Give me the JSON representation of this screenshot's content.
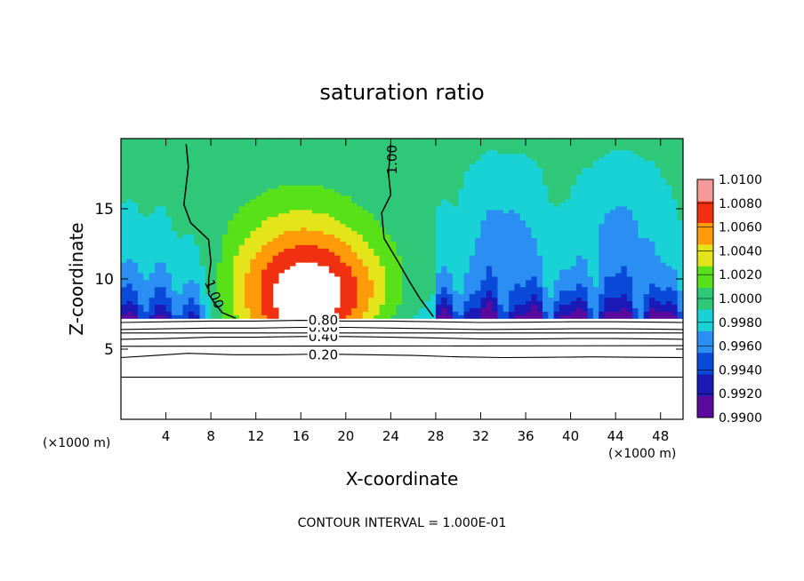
{
  "chart_data": {
    "type": "heatmap",
    "title": "saturation ratio",
    "xlabel": "X-coordinate",
    "ylabel": "Z-coordinate",
    "x_unit_left": "(×1000 m)",
    "x_unit_right": "(×1000 m)",
    "footer": "CONTOUR INTERVAL = 1.000E-01",
    "xlim": [
      0,
      50
    ],
    "ylim": [
      0,
      20
    ],
    "x_ticks": [
      4,
      8,
      12,
      16,
      20,
      24,
      28,
      32,
      36,
      40,
      44,
      48
    ],
    "y_ticks": [
      5,
      10,
      15
    ],
    "surface_height": 7.2,
    "colorbar": {
      "levels": [
        0.99,
        0.992,
        0.994,
        0.996,
        0.998,
        1.0,
        1.002,
        1.004,
        1.006,
        1.008,
        1.01
      ],
      "tick_labels": [
        "0.9900",
        "0.9920",
        "0.9940",
        "0.9960",
        "0.9980",
        "1.0000",
        "1.0020",
        "1.0040",
        "1.0060",
        "1.0080",
        "1.0100"
      ],
      "colors": [
        "#5a0a9c",
        "#1c1ab6",
        "#0a4ad8",
        "#2a8ef2",
        "#18d2d6",
        "#2ec878",
        "#58e018",
        "#e4e41a",
        "#ff9a08",
        "#f03010",
        "#f49a9a"
      ]
    },
    "contours": [
      {
        "label": "1.00",
        "side": "left",
        "x": [
          5.8,
          6.0,
          5.6,
          6.2,
          7.8,
          8.0,
          7.8,
          7.8,
          8.4,
          9.0,
          10.2
        ],
        "y": [
          19.6,
          18.0,
          15.3,
          14.0,
          12.8,
          11.2,
          10.0,
          8.9,
          8.2,
          7.6,
          7.2
        ]
      },
      {
        "label": "1.00",
        "side": "right",
        "x": [
          24.0,
          23.8,
          24.0,
          23.2,
          23.4,
          24.6,
          25.6,
          26.6,
          27.8
        ],
        "y": [
          19.6,
          17.5,
          16.0,
          14.7,
          12.9,
          11.3,
          9.9,
          8.6,
          7.3
        ]
      },
      {
        "label": "0.20",
        "x": [
          0,
          2,
          6,
          10,
          14,
          18,
          22,
          26,
          30,
          34,
          38,
          42,
          46,
          50
        ],
        "y": [
          4.4,
          4.5,
          4.7,
          4.6,
          4.6,
          4.65,
          4.6,
          4.55,
          4.45,
          4.4,
          4.42,
          4.45,
          4.42,
          4.4
        ]
      },
      {
        "label": "0.40",
        "x": [
          0,
          4,
          8,
          12,
          16,
          20,
          24,
          28,
          32,
          36,
          40,
          44,
          48,
          50
        ],
        "y": [
          5.7,
          5.75,
          5.85,
          5.85,
          5.9,
          5.9,
          5.85,
          5.8,
          5.72,
          5.72,
          5.75,
          5.75,
          5.72,
          5.7
        ]
      },
      {
        "label": "0.60",
        "x": [
          0,
          4,
          8,
          12,
          16,
          20,
          24,
          28,
          32,
          36,
          40,
          44,
          48,
          50
        ],
        "y": [
          6.4,
          6.45,
          6.5,
          6.5,
          6.55,
          6.55,
          6.5,
          6.45,
          6.4,
          6.42,
          6.45,
          6.45,
          6.42,
          6.4
        ]
      },
      {
        "label": "0.80",
        "x": [
          0,
          4,
          8,
          12,
          16,
          20,
          24,
          28,
          32,
          36,
          40,
          44,
          48,
          50
        ],
        "y": [
          6.9,
          6.95,
          7.0,
          7.0,
          7.05,
          7.0,
          7.0,
          6.95,
          6.9,
          6.92,
          6.95,
          6.95,
          6.92,
          6.9
        ]
      },
      {
        "label": "",
        "x": [
          0,
          50
        ],
        "y": [
          6.15,
          6.15
        ]
      },
      {
        "label": "",
        "x": [
          0,
          50
        ],
        "y": [
          5.2,
          5.25
        ]
      },
      {
        "label": "",
        "x": [
          0,
          50
        ],
        "y": [
          3.0,
          3.0
        ]
      }
    ]
  }
}
